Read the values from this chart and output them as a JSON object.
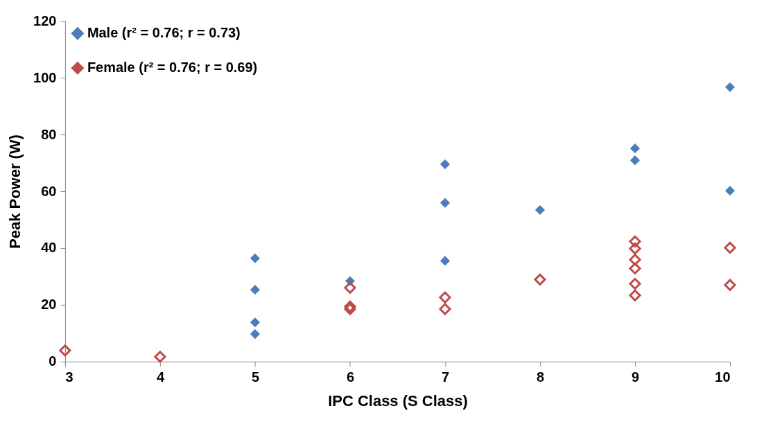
{
  "chart_data": {
    "type": "scatter",
    "xlabel": "IPC Class (S Class)",
    "ylabel": "Peak Power (W)",
    "xlim": [
      3,
      10
    ],
    "xticks": [
      3,
      4,
      5,
      6,
      7,
      8,
      9,
      10
    ],
    "ylim": [
      0,
      120
    ],
    "yticks": [
      0,
      20,
      40,
      60,
      80,
      100,
      120
    ],
    "grid": false,
    "legend": "top left",
    "marker": "diamond",
    "series": [
      {
        "name": "Male  (r² = 0.76; r = 0.73)",
        "color": "#4a7ebb",
        "x": [
          5,
          5,
          5,
          5,
          6,
          7,
          7,
          7,
          8,
          9,
          9,
          10,
          10
        ],
        "values": [
          36.4,
          25.3,
          13.8,
          9.7,
          28.4,
          69.5,
          55.9,
          35.5,
          53.4,
          75.1,
          70.9,
          96.7,
          60.2
        ]
      },
      {
        "name": "Female  (r² = 0.76; r = 0.69)",
        "color": "#be4b48",
        "x": [
          3,
          4,
          6,
          6,
          6,
          7,
          7,
          8,
          9,
          9,
          9,
          9,
          9,
          9,
          10,
          10
        ],
        "values": [
          3.9,
          1.7,
          26.0,
          19.4,
          18.5,
          22.6,
          18.5,
          28.9,
          42.3,
          39.8,
          35.9,
          32.8,
          27.4,
          23.3,
          40.1,
          27.0
        ]
      }
    ]
  }
}
